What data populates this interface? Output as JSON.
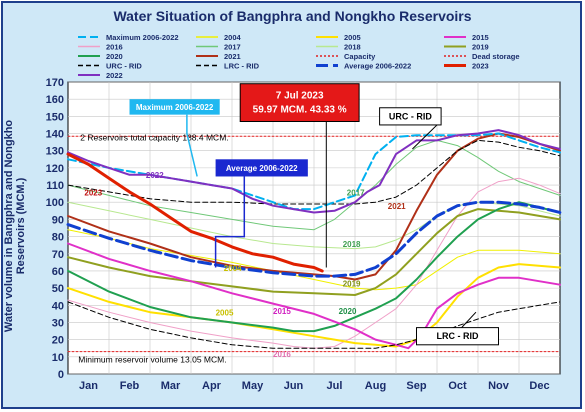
{
  "chart_data": {
    "type": "line",
    "title": "Water Situation of Bangphra and Nongkho Reservoirs",
    "ylabel": "Water volume in Bangphra and Nongkho Reservoirs (MCM.)",
    "ylim": [
      0,
      170
    ],
    "yticks": [
      0,
      10,
      20,
      30,
      40,
      50,
      60,
      70,
      80,
      90,
      100,
      110,
      120,
      130,
      140,
      150,
      160,
      170
    ],
    "categories": [
      "Jan",
      "Feb",
      "Mar",
      "Apr",
      "May",
      "Jun",
      "Jul",
      "Aug",
      "Sep",
      "Oct",
      "Nov",
      "Dec"
    ],
    "grid": true,
    "legend_position": "top",
    "legend": [
      {
        "name": "Maximum 2006-2022",
        "color": "#00b0f0",
        "dash": "8 4",
        "width": 2
      },
      {
        "name": "2004",
        "color": "#f0f000",
        "dash": "",
        "width": 1
      },
      {
        "name": "2005",
        "color": "#ffe000",
        "dash": "",
        "width": 2
      },
      {
        "name": "2015",
        "color": "#e030c8",
        "dash": "",
        "width": 2
      },
      {
        "name": "2016",
        "color": "#f0a0c8",
        "dash": "",
        "width": 1
      },
      {
        "name": "2017",
        "color": "#70c878",
        "dash": "",
        "width": 1
      },
      {
        "name": "2018",
        "color": "#b8e890",
        "dash": "",
        "width": 1
      },
      {
        "name": "2019",
        "color": "#90a020",
        "dash": "",
        "width": 2
      },
      {
        "name": "2020",
        "color": "#20a050",
        "dash": "",
        "width": 2
      },
      {
        "name": "2021",
        "color": "#b03018",
        "dash": "",
        "width": 2
      },
      {
        "name": "Capacity",
        "color": "#e02020",
        "dash": "2 2",
        "width": 1
      },
      {
        "name": "Dead storage",
        "color": "#e02020",
        "dash": "2 2",
        "width": 1
      },
      {
        "name": "URC - RID",
        "color": "#000000",
        "dash": "5 3",
        "width": 1
      },
      {
        "name": "LRC - RID",
        "color": "#000000",
        "dash": "5 3",
        "width": 1
      },
      {
        "name": "Average 2006-2022",
        "color": "#1040d0",
        "dash": "12 5",
        "width": 3
      },
      {
        "name": "2023",
        "color": "#e02000",
        "dash": "",
        "width": 3
      },
      {
        "name": "2022",
        "color": "#8030c0",
        "dash": "",
        "width": 2
      }
    ],
    "series": [
      {
        "name": "Maximum 2006-2022",
        "x": [
          0,
          1,
          2,
          3,
          4,
          5,
          5.5,
          6,
          6.5,
          7,
          7.5,
          8,
          8.5,
          9,
          9.5,
          10,
          10.5,
          11,
          11.5,
          12
        ],
        "values": [
          125,
          120,
          116,
          112,
          108,
          100,
          96,
          96,
          100,
          104,
          128,
          138,
          139,
          139,
          139,
          139,
          140,
          136,
          132,
          129
        ]
      },
      {
        "name": "2004",
        "x": [
          0,
          1,
          2,
          3,
          4,
          5,
          6,
          7,
          7.5,
          8,
          8.5,
          9,
          9.5,
          10,
          11,
          12
        ],
        "values": [
          84,
          79,
          73,
          69,
          65,
          60,
          55,
          50,
          49,
          50,
          52,
          60,
          68,
          72,
          72,
          70
        ]
      },
      {
        "name": "2005",
        "x": [
          0,
          1,
          2,
          3,
          4,
          5,
          6,
          6.5,
          7,
          7.5,
          8,
          8.5,
          9,
          9.5,
          10,
          10.5,
          11,
          12
        ],
        "values": [
          50,
          42,
          36,
          33,
          30,
          26,
          22,
          20,
          18,
          17,
          16,
          20,
          30,
          45,
          56,
          62,
          64,
          62
        ]
      },
      {
        "name": "2015",
        "x": [
          0,
          1,
          2,
          3,
          4,
          5,
          6,
          7,
          7.5,
          8,
          8.3,
          8.6,
          9,
          9.5,
          10,
          10.5,
          11,
          12
        ],
        "values": [
          76,
          67,
          60,
          54,
          47,
          41,
          35,
          26,
          20,
          17,
          15,
          22,
          38,
          47,
          52,
          56,
          56,
          52
        ]
      },
      {
        "name": "2016",
        "x": [
          0,
          1,
          2,
          3,
          4,
          5,
          5.5,
          6,
          6.5,
          7,
          7.5,
          8,
          8.5,
          9,
          9.5,
          10,
          10.5,
          11,
          11.5,
          12
        ],
        "values": [
          43,
          36,
          30,
          25,
          21,
          18,
          16,
          15,
          16,
          22,
          30,
          38,
          52,
          72,
          92,
          106,
          112,
          114,
          110,
          105
        ]
      },
      {
        "name": "2017",
        "x": [
          0,
          1,
          2,
          3,
          4,
          5,
          6,
          6.5,
          7,
          7.5,
          8,
          8.5,
          9,
          9.5,
          10,
          10.5,
          11,
          11.5,
          12
        ],
        "values": [
          110,
          104,
          98,
          94,
          90,
          86,
          84,
          90,
          100,
          110,
          122,
          132,
          136,
          133,
          126,
          118,
          112,
          108,
          104
        ]
      },
      {
        "name": "2018",
        "x": [
          0,
          1,
          2,
          3,
          4,
          5,
          6,
          7,
          7.5,
          8,
          8.5,
          9,
          9.5,
          10,
          11,
          12
        ],
        "values": [
          100,
          95,
          90,
          85,
          80,
          76,
          74,
          73,
          74,
          78,
          84,
          92,
          98,
          100,
          98,
          92
        ]
      },
      {
        "name": "2019",
        "x": [
          0,
          1,
          2,
          3,
          4,
          5,
          6,
          7,
          7.5,
          8,
          8.5,
          9,
          9.5,
          10,
          11,
          12
        ],
        "values": [
          68,
          62,
          57,
          54,
          51,
          48,
          47,
          46,
          50,
          58,
          70,
          82,
          92,
          96,
          94,
          90
        ]
      },
      {
        "name": "2020",
        "x": [
          0,
          1,
          2,
          3,
          4,
          5,
          5.5,
          6,
          6.5,
          7,
          7.5,
          8,
          8.5,
          9,
          9.5,
          10,
          10.5,
          11,
          11.5,
          12
        ],
        "values": [
          60,
          48,
          39,
          33,
          30,
          27,
          25,
          25,
          28,
          33,
          38,
          44,
          55,
          68,
          80,
          90,
          96,
          100,
          97,
          94
        ]
      },
      {
        "name": "2021",
        "x": [
          0,
          1,
          2,
          3,
          4,
          5,
          6,
          6.5,
          7,
          7.5,
          8,
          8.5,
          9,
          9.5,
          10,
          10.5,
          11,
          11.5,
          12
        ],
        "values": [
          92,
          83,
          76,
          68,
          63,
          60,
          58,
          57,
          55,
          58,
          72,
          95,
          116,
          130,
          137,
          140,
          138,
          134,
          130
        ]
      },
      {
        "name": "Capacity",
        "x": [
          0,
          12
        ],
        "values": [
          138.4,
          138.4
        ]
      },
      {
        "name": "Dead storage",
        "x": [
          0,
          12
        ],
        "values": [
          13.05,
          13.05
        ]
      },
      {
        "name": "URC - RID",
        "x": [
          0,
          1,
          2,
          3,
          4,
          5,
          6,
          7,
          7.5,
          8,
          8.5,
          9,
          9.5,
          10,
          10.5,
          11,
          11.5,
          12
        ],
        "values": [
          110,
          106,
          102,
          100,
          100,
          99,
          99,
          99,
          100,
          103,
          110,
          120,
          130,
          136,
          135,
          132,
          130,
          127
        ]
      },
      {
        "name": "LRC - RID",
        "x": [
          0,
          1,
          2,
          3,
          4,
          5,
          6,
          7,
          7.5,
          8,
          8.5,
          9,
          9.5,
          10,
          10.5,
          11,
          11.5,
          12
        ],
        "values": [
          42,
          33,
          26,
          21,
          17,
          15,
          15,
          15,
          15,
          17,
          20,
          23,
          28,
          32,
          36,
          38,
          40,
          42
        ]
      },
      {
        "name": "Average 2006-2022",
        "x": [
          0,
          1,
          2,
          3,
          4,
          5,
          6,
          6.5,
          7,
          7.5,
          8,
          8.5,
          9,
          9.5,
          10,
          10.5,
          11,
          11.5,
          12
        ],
        "values": [
          87,
          79,
          72,
          66,
          62,
          59,
          57,
          57,
          58,
          62,
          70,
          82,
          92,
          98,
          100,
          100,
          99,
          97,
          94
        ]
      },
      {
        "name": "2023",
        "x": [
          0,
          0.5,
          1,
          1.5,
          2,
          2.5,
          3,
          3.5,
          4,
          4.5,
          5,
          5.5,
          6,
          6.2
        ],
        "values": [
          128,
          122,
          114,
          106,
          99,
          91,
          83,
          79,
          74,
          70,
          68,
          64,
          62,
          59.97
        ]
      },
      {
        "name": "2022",
        "x": [
          0,
          0.5,
          1,
          1.5,
          2,
          2.5,
          3,
          3.5,
          4,
          4.5,
          5,
          5.5,
          6,
          6.5,
          7,
          7.3,
          7.6,
          8,
          8.5,
          9,
          9.5,
          10,
          10.5,
          11,
          11.5,
          12
        ],
        "values": [
          129,
          124,
          120,
          116,
          116,
          114,
          112,
          110,
          108,
          102,
          98,
          96,
          94,
          95,
          100,
          106,
          110,
          128,
          136,
          136,
          139,
          140,
          142,
          139,
          134,
          131
        ]
      }
    ],
    "annotations": {
      "current_date": "7 Jul 2023",
      "current_value": "59.97 MCM. 43.33 %",
      "capacity_text": "2 Reservoirs total capacity 138.4 MCM.",
      "min_text": "Minimum reservoir volume 13.05 MCM.",
      "max_callout": "Maximum 2006-2022",
      "avg_callout": "Average 2006-2022",
      "urc_callout": "URC - RID",
      "lrc_callout": "LRC - RID"
    },
    "in_plot_labels": [
      {
        "text": "2022",
        "x": 1.9,
        "y": 114,
        "color": "#8030c0"
      },
      {
        "text": "2023",
        "x": 0.4,
        "y": 104,
        "color": "#c01010"
      },
      {
        "text": "2017",
        "x": 6.8,
        "y": 104,
        "color": "#40a050"
      },
      {
        "text": "2021",
        "x": 7.8,
        "y": 96,
        "color": "#b03018"
      },
      {
        "text": "2018",
        "x": 6.7,
        "y": 74,
        "color": "#40a050"
      },
      {
        "text": "2004",
        "x": 3.8,
        "y": 60,
        "color": "#c8c000"
      },
      {
        "text": "2019",
        "x": 6.7,
        "y": 51,
        "color": "#809010"
      },
      {
        "text": "2005",
        "x": 3.6,
        "y": 34,
        "color": "#c8c000"
      },
      {
        "text": "2015",
        "x": 5.0,
        "y": 35,
        "color": "#d020c0"
      },
      {
        "text": "2020",
        "x": 6.6,
        "y": 35,
        "color": "#209048"
      },
      {
        "text": "2016",
        "x": 5.0,
        "y": 10,
        "color": "#e070b0"
      }
    ]
  }
}
